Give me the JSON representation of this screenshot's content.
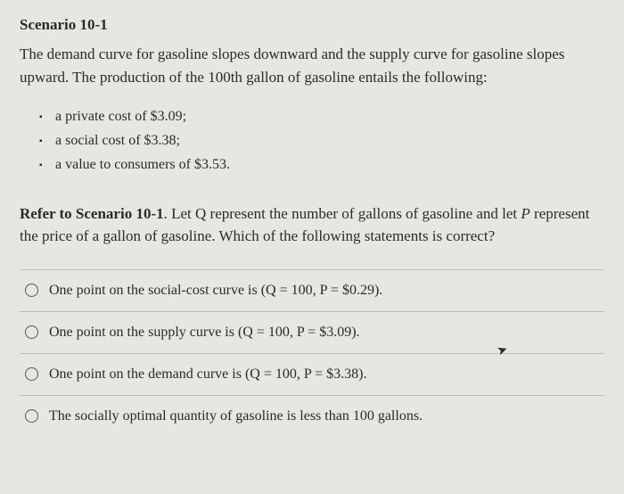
{
  "scenario": {
    "title": "Scenario 10-1",
    "intro": "The demand curve for gasoline slopes downward and the supply curve for gasoline slopes upward. The production of the 100th gallon of gasoline entails the following:",
    "bullets": [
      "a private cost of $3.09;",
      "a social cost of $3.38;",
      "a value to consumers of $3.53."
    ]
  },
  "question": {
    "prefix": "Refer to Scenario 10-1",
    "body": ". Let Q represent the number of gallons of gasoline and let ",
    "italic_var": "P",
    "suffix": " represent the price of a gallon of gasoline. Which of the following statements is correct?"
  },
  "options": [
    "One point on the social-cost curve is (Q = 100, P = $0.29).",
    "One point on the supply curve is (Q = 100, P = $3.09).",
    "One point on the demand curve is (Q = 100, P = $3.38).",
    "The socially optimal quantity of gasoline is less than 100 gallons."
  ]
}
